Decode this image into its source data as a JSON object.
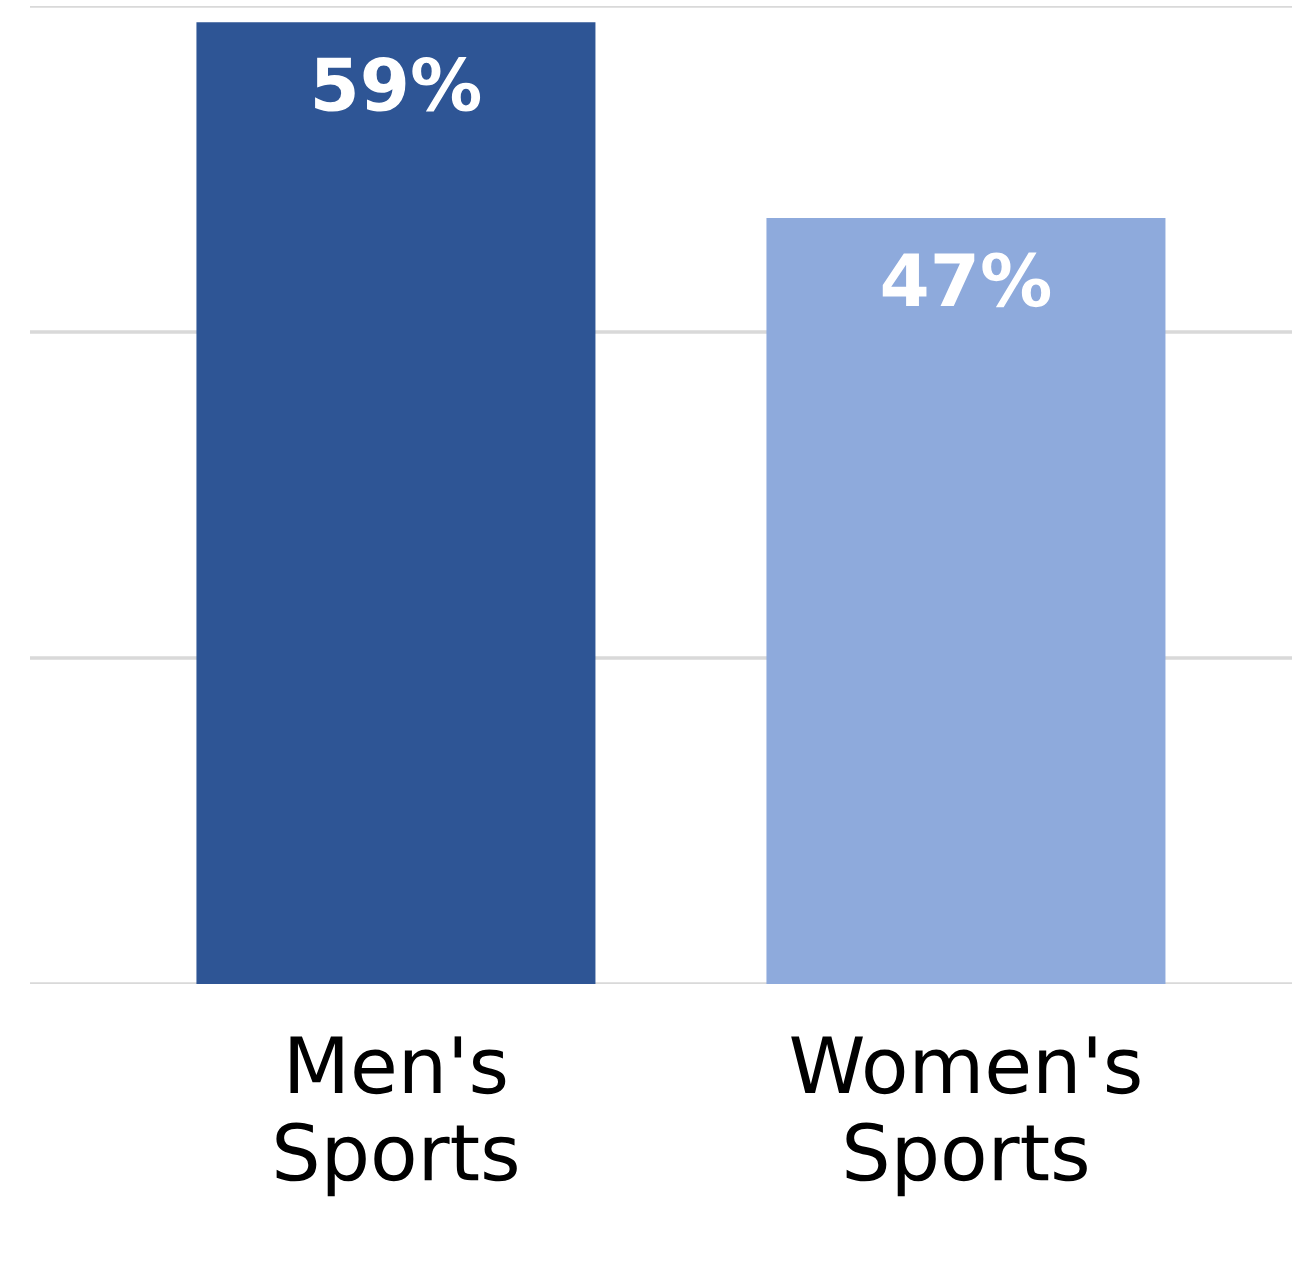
{
  "chart_data": {
    "type": "bar",
    "categories": [
      "Men's Sports",
      "Women's Sports"
    ],
    "values": [
      59,
      47
    ],
    "colors": [
      "#2e5595",
      "#8eaadc"
    ],
    "value_labels": [
      "59%",
      "47%"
    ],
    "ylim": [
      0,
      60
    ],
    "yticks": [
      {
        "value": 0,
        "label": null
      },
      {
        "value": 20,
        "label": null
      },
      {
        "value": 40,
        "label": null
      },
      {
        "value": 60,
        "label": null
      }
    ],
    "grid": "y",
    "tick_labels": "x"
  }
}
